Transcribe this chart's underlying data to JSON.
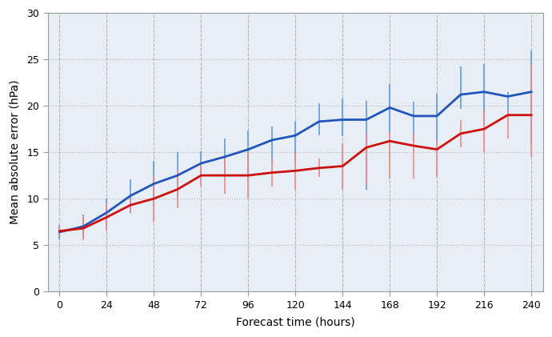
{
  "x": [
    0,
    12,
    24,
    36,
    48,
    60,
    72,
    84,
    96,
    108,
    120,
    132,
    144,
    156,
    168,
    180,
    192,
    204,
    216,
    228,
    240
  ],
  "blue_y": [
    6.4,
    7.0,
    8.5,
    10.3,
    11.6,
    12.5,
    13.8,
    14.5,
    15.3,
    16.3,
    16.8,
    18.3,
    18.5,
    18.5,
    19.8,
    18.9,
    18.9,
    21.2,
    21.5,
    21.0,
    21.5
  ],
  "blue_err_lo": [
    0.8,
    1.3,
    1.5,
    1.8,
    2.5,
    2.5,
    1.3,
    2.0,
    3.5,
    2.5,
    3.0,
    1.5,
    1.8,
    7.5,
    2.8,
    2.8,
    2.8,
    1.5,
    3.5,
    2.0,
    5.5
  ],
  "blue_err_hi": [
    0.8,
    1.3,
    1.5,
    1.8,
    2.5,
    2.5,
    1.3,
    2.0,
    2.0,
    1.5,
    1.5,
    2.0,
    2.3,
    2.0,
    2.5,
    1.5,
    2.4,
    3.0,
    3.0,
    0.5,
    4.5
  ],
  "red_y": [
    6.5,
    6.8,
    8.0,
    9.3,
    10.0,
    11.0,
    12.5,
    12.5,
    12.5,
    12.8,
    13.0,
    13.3,
    13.5,
    15.5,
    16.2,
    15.7,
    15.3,
    17.0,
    17.5,
    19.0,
    19.0
  ],
  "red_err_lo": [
    0.5,
    1.3,
    1.5,
    0.7,
    2.5,
    2.0,
    1.2,
    2.0,
    2.5,
    1.5,
    2.0,
    1.0,
    2.5,
    4.0,
    4.0,
    3.5,
    3.0,
    1.5,
    2.5,
    2.5,
    4.5
  ],
  "red_err_hi": [
    0.5,
    1.3,
    1.5,
    0.7,
    2.5,
    2.0,
    1.2,
    2.0,
    2.5,
    1.5,
    2.0,
    1.0,
    2.5,
    1.5,
    1.0,
    1.3,
    1.0,
    1.5,
    2.0,
    0.5,
    5.5
  ],
  "blue_color": "#2255bb",
  "red_color": "#cc1111",
  "blue_err_color": "#6699dd",
  "red_err_color": "#ee8888",
  "xlabel": "Forecast time (hours)",
  "ylabel": "Mean absolute error (hPa)",
  "xlim": [
    -6,
    246
  ],
  "ylim": [
    0,
    30
  ],
  "xticks": [
    0,
    24,
    48,
    72,
    96,
    120,
    144,
    168,
    192,
    216,
    240
  ],
  "yticks": [
    0,
    5,
    10,
    15,
    20,
    25,
    30
  ],
  "plot_bg_color": "#e8eef5",
  "fig_bg_color": "#ffffff",
  "grid_color": "#bbbbbb",
  "spine_color": "#999999"
}
